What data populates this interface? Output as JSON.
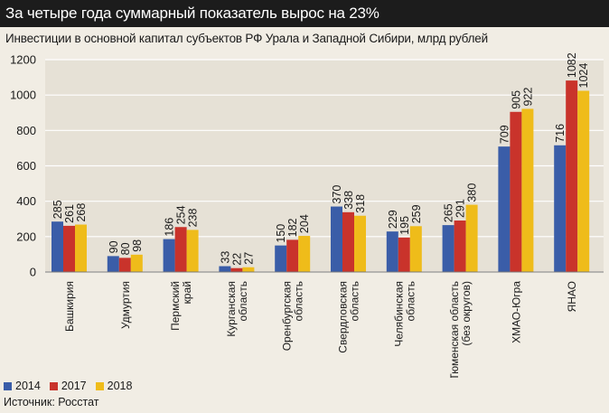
{
  "headline": "За четыре года суммарный показатель вырос на 23%",
  "source": "Источник: Росстат",
  "colors": {
    "s2014": "#3a5da8",
    "s2017": "#c9332b",
    "s2018": "#efbc1a",
    "grid": "#ffffff",
    "text": "#1a1a1a"
  },
  "chart_data": {
    "type": "bar",
    "title": "Инвестиции в основной капитал субъектов РФ Урала и Западной Сибири, млрд рублей",
    "ylim": [
      0,
      1200
    ],
    "yticks": [
      "0",
      "200",
      "400",
      "600",
      "800",
      "1000",
      "1200"
    ],
    "grid": true,
    "legend_position": "bottom-left",
    "categories": [
      [
        "Башкирия"
      ],
      [
        "Удмуртия"
      ],
      [
        "Пермский",
        "край"
      ],
      [
        "Курганская",
        "область"
      ],
      [
        "Оренбургская",
        "область"
      ],
      [
        "Свердловская",
        "область"
      ],
      [
        "Челябинская",
        "область"
      ],
      [
        "Тюменская область",
        "(без округов)"
      ],
      [
        "ХМАО-Югра"
      ],
      [
        "ЯНАО"
      ]
    ],
    "series": [
      {
        "name": "2014",
        "values": [
          285,
          90,
          186,
          33,
          150,
          370,
          229,
          265,
          709,
          716
        ]
      },
      {
        "name": "2017",
        "values": [
          261,
          80,
          254,
          22,
          182,
          338,
          195,
          291,
          905,
          1082
        ]
      },
      {
        "name": "2018",
        "values": [
          268,
          98,
          238,
          27,
          204,
          318,
          259,
          380,
          922,
          1024
        ]
      }
    ]
  }
}
